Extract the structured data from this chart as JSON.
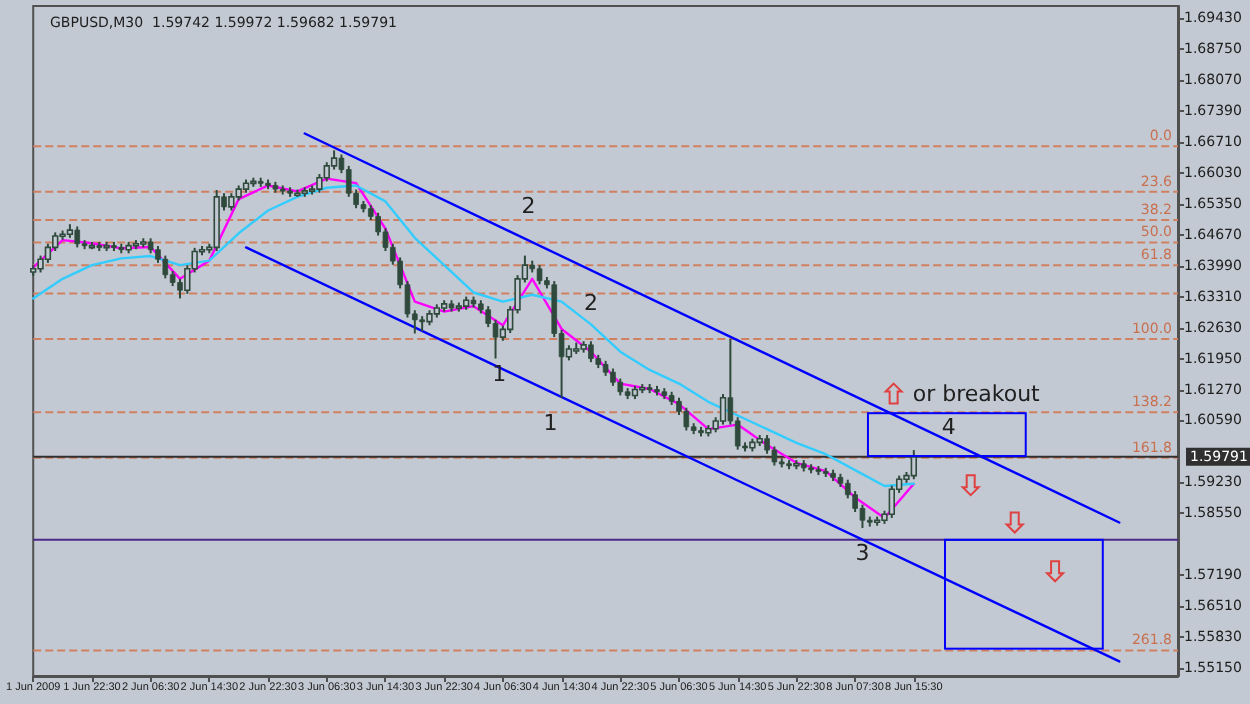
{
  "chart_data": {
    "type": "candlestick",
    "title": "GBPUSD,M30  1.59742 1.59972 1.59682 1.59791",
    "categories": [
      "1 Jun 2009",
      null,
      null,
      null,
      null,
      null,
      null,
      null,
      "1 Jun 22:30",
      null,
      null,
      null,
      null,
      null,
      null,
      null,
      "2 Jun 06:30",
      null,
      null,
      null,
      null,
      null,
      null,
      null,
      "2 Jun 14:30",
      null,
      null,
      null,
      null,
      null,
      null,
      null,
      "2 Jun 22:30",
      null,
      null,
      null,
      null,
      null,
      null,
      null,
      "3 Jun 06:30",
      null,
      null,
      null,
      null,
      null,
      null,
      null,
      "3 Jun 14:30",
      null,
      null,
      null,
      null,
      null,
      null,
      null,
      "3 Jun 22:30",
      null,
      null,
      null,
      null,
      null,
      null,
      null,
      "4 Jun 06:30",
      null,
      null,
      null,
      null,
      null,
      null,
      null,
      "4 Jun 14:30",
      null,
      null,
      null,
      null,
      null,
      null,
      null,
      "4 Jun 22:30",
      null,
      null,
      null,
      null,
      null,
      null,
      null,
      "5 Jun 06:30",
      null,
      null,
      null,
      null,
      null,
      null,
      null,
      "5 Jun 14:30",
      null,
      null,
      null,
      null,
      null,
      null,
      null,
      "5 Jun 22:30",
      null,
      null,
      null,
      null,
      null,
      null,
      null,
      "8 Jun 07:30",
      null,
      null,
      null,
      null,
      null,
      null,
      null,
      "8 Jun 15:30",
      null,
      null,
      null,
      null,
      null,
      null,
      null,
      null,
      null,
      null,
      null,
      null,
      null,
      null,
      null,
      null,
      null,
      null,
      null,
      null,
      null,
      null,
      null,
      null,
      null,
      null,
      null,
      null,
      null,
      null,
      null,
      null,
      null,
      null,
      null,
      null
    ],
    "ylim": [
      1.5498,
      1.6969
    ],
    "yticks": [
      {
        "value": 1.5515,
        "label": "1.55150"
      },
      {
        "value": 1.5583,
        "label": "1.55830"
      },
      {
        "value": 1.5651,
        "label": "1.56510"
      },
      {
        "value": 1.5719,
        "label": "1.57190"
      },
      {
        "value": 1.5855,
        "label": "1.58550"
      },
      {
        "value": 1.5923,
        "label": "1.59230"
      },
      {
        "value": 1.6059,
        "label": "1.60590"
      },
      {
        "value": 1.6127,
        "label": "1.61270"
      },
      {
        "value": 1.6195,
        "label": "1.61950"
      },
      {
        "value": 1.6263,
        "label": "1.62630"
      },
      {
        "value": 1.6331,
        "label": "1.63310"
      },
      {
        "value": 1.6399,
        "label": "1.63990"
      },
      {
        "value": 1.6467,
        "label": "1.64670"
      },
      {
        "value": 1.6535,
        "label": "1.65350"
      },
      {
        "value": 1.6603,
        "label": "1.66030"
      },
      {
        "value": 1.6671,
        "label": "1.66710"
      },
      {
        "value": 1.6739,
        "label": "1.67390"
      },
      {
        "value": 1.6807,
        "label": "1.68070"
      },
      {
        "value": 1.6875,
        "label": "1.68750"
      },
      {
        "value": 1.6943,
        "label": "1.69430"
      }
    ],
    "marker": "none",
    "series": [
      {
        "color": "#2f4a3c",
        "ohlc": [
          [
            1.6385,
            1.64,
            1.6377,
            1.6392
          ],
          [
            1.6392,
            1.6421,
            1.6384,
            1.6413
          ],
          [
            1.6413,
            1.6447,
            1.6405,
            1.6439
          ],
          [
            1.6439,
            1.6472,
            1.6431,
            1.6464
          ],
          [
            1.6464,
            1.6476,
            1.6456,
            1.6468
          ],
          [
            1.6468,
            1.649,
            1.646,
            1.6477
          ],
          [
            1.6477,
            1.6485,
            1.6439,
            1.6447
          ],
          [
            1.6447,
            1.6455,
            1.6435,
            1.6443
          ],
          [
            1.6443,
            1.6451,
            1.6435,
            1.6443
          ],
          [
            1.6443,
            1.6451,
            1.6431,
            1.6439
          ],
          [
            1.6439,
            1.6451,
            1.6431,
            1.6443
          ],
          [
            1.6443,
            1.6451,
            1.6431,
            1.6439
          ],
          [
            1.6439,
            1.6447,
            1.6426,
            1.6434
          ],
          [
            1.6434,
            1.6451,
            1.6426,
            1.6443
          ],
          [
            1.6443,
            1.6455,
            1.6435,
            1.6447
          ],
          [
            1.6447,
            1.6459,
            1.6439,
            1.6451
          ],
          [
            1.6451,
            1.6459,
            1.6426,
            1.6434
          ],
          [
            1.6434,
            1.6442,
            1.6405,
            1.6413
          ],
          [
            1.6413,
            1.6421,
            1.6371,
            1.6379
          ],
          [
            1.6379,
            1.6387,
            1.6354,
            1.6362
          ],
          [
            1.6362,
            1.637,
            1.6327,
            1.6345
          ],
          [
            1.6345,
            1.64,
            1.6337,
            1.6392
          ],
          [
            1.6392,
            1.6438,
            1.6384,
            1.643
          ],
          [
            1.643,
            1.6442,
            1.6422,
            1.6434
          ],
          [
            1.6434,
            1.6447,
            1.6426,
            1.6439
          ],
          [
            1.6439,
            1.6565,
            1.6431,
            1.655
          ],
          [
            1.655,
            1.6558,
            1.652,
            1.6528
          ],
          [
            1.6528,
            1.6558,
            1.652,
            1.655
          ],
          [
            1.655,
            1.6575,
            1.6542,
            1.6567
          ],
          [
            1.6567,
            1.6588,
            1.6559,
            1.658
          ],
          [
            1.658,
            1.6592,
            1.6572,
            1.6584
          ],
          [
            1.6584,
            1.6592,
            1.6572,
            1.658
          ],
          [
            1.658,
            1.6588,
            1.6567,
            1.6575
          ],
          [
            1.6575,
            1.6583,
            1.6559,
            1.6567
          ],
          [
            1.6567,
            1.6575,
            1.6555,
            1.6563
          ],
          [
            1.6563,
            1.6571,
            1.655,
            1.6558
          ],
          [
            1.6558,
            1.6566,
            1.655,
            1.6558
          ],
          [
            1.6558,
            1.6571,
            1.655,
            1.6563
          ],
          [
            1.6563,
            1.6575,
            1.6555,
            1.6567
          ],
          [
            1.6567,
            1.66,
            1.6559,
            1.6592
          ],
          [
            1.6592,
            1.6626,
            1.6584,
            1.6618
          ],
          [
            1.6618,
            1.6652,
            1.661,
            1.6635
          ],
          [
            1.6635,
            1.6643,
            1.6602,
            1.661
          ],
          [
            1.661,
            1.6618,
            1.655,
            1.6558
          ],
          [
            1.6558,
            1.6566,
            1.6525,
            1.6533
          ],
          [
            1.6533,
            1.6541,
            1.6516,
            1.6524
          ],
          [
            1.6524,
            1.6532,
            1.6499,
            1.6507
          ],
          [
            1.6507,
            1.6515,
            1.6465,
            1.6473
          ],
          [
            1.6473,
            1.6481,
            1.6431,
            1.6439
          ],
          [
            1.6439,
            1.6447,
            1.6401,
            1.6409
          ],
          [
            1.6409,
            1.6417,
            1.6349,
            1.6357
          ],
          [
            1.6357,
            1.6365,
            1.6285,
            1.6293
          ],
          [
            1.6293,
            1.6301,
            1.625,
            1.628
          ],
          [
            1.628,
            1.6288,
            1.6255,
            1.6276
          ],
          [
            1.6276,
            1.6301,
            1.6268,
            1.6293
          ],
          [
            1.6293,
            1.6314,
            1.6285,
            1.6306
          ],
          [
            1.6306,
            1.6323,
            1.6298,
            1.6315
          ],
          [
            1.6315,
            1.6323,
            1.6298,
            1.6306
          ],
          [
            1.6306,
            1.6318,
            1.6298,
            1.631
          ],
          [
            1.631,
            1.6331,
            1.6302,
            1.6323
          ],
          [
            1.6323,
            1.6331,
            1.6307,
            1.6315
          ],
          [
            1.6315,
            1.6323,
            1.6294,
            1.6302
          ],
          [
            1.6302,
            1.631,
            1.6264,
            1.6272
          ],
          [
            1.6272,
            1.628,
            1.6195,
            1.6242
          ],
          [
            1.6242,
            1.6267,
            1.6234,
            1.6259
          ],
          [
            1.6259,
            1.631,
            1.6251,
            1.6302
          ],
          [
            1.6302,
            1.6378,
            1.6294,
            1.637
          ],
          [
            1.637,
            1.6421,
            1.6362,
            1.64
          ],
          [
            1.64,
            1.641,
            1.6384,
            1.6392
          ],
          [
            1.6392,
            1.64,
            1.6358,
            1.6366
          ],
          [
            1.6366,
            1.6374,
            1.6349,
            1.6357
          ],
          [
            1.6357,
            1.6365,
            1.6242,
            1.625
          ],
          [
            1.625,
            1.6258,
            1.6109,
            1.6199
          ],
          [
            1.6199,
            1.6224,
            1.6191,
            1.6216
          ],
          [
            1.6216,
            1.623,
            1.6205,
            1.6216
          ],
          [
            1.6216,
            1.6233,
            1.6208,
            1.6225
          ],
          [
            1.6225,
            1.6233,
            1.6187,
            1.6195
          ],
          [
            1.6195,
            1.6203,
            1.6174,
            1.6182
          ],
          [
            1.6182,
            1.619,
            1.6157,
            1.6165
          ],
          [
            1.6165,
            1.6173,
            1.6135,
            1.6143
          ],
          [
            1.6143,
            1.6151,
            1.6114,
            1.6122
          ],
          [
            1.6122,
            1.613,
            1.6106,
            1.6114
          ],
          [
            1.6114,
            1.6135,
            1.6106,
            1.6127
          ],
          [
            1.6127,
            1.6139,
            1.6119,
            1.6131
          ],
          [
            1.6131,
            1.6139,
            1.6119,
            1.6127
          ],
          [
            1.6127,
            1.6135,
            1.6114,
            1.6122
          ],
          [
            1.6122,
            1.613,
            1.6106,
            1.6114
          ],
          [
            1.6114,
            1.6122,
            1.6093,
            1.6101
          ],
          [
            1.6101,
            1.6109,
            1.6071,
            1.6079
          ],
          [
            1.6079,
            1.6087,
            1.6037,
            1.6045
          ],
          [
            1.6045,
            1.6053,
            1.6029,
            1.6037
          ],
          [
            1.6037,
            1.6045,
            1.6024,
            1.6032
          ],
          [
            1.6032,
            1.6049,
            1.6024,
            1.6041
          ],
          [
            1.6041,
            1.6066,
            1.6033,
            1.6058
          ],
          [
            1.6058,
            1.6117,
            1.605,
            1.6109
          ],
          [
            1.6109,
            1.6238,
            1.605,
            1.6058
          ],
          [
            1.6058,
            1.6066,
            1.5995,
            1.6003
          ],
          [
            1.6003,
            1.6011,
            1.5991,
            1.5999
          ],
          [
            1.5999,
            1.6019,
            1.5991,
            1.6011
          ],
          [
            1.6011,
            1.6027,
            1.6003,
            1.6019
          ],
          [
            1.6019,
            1.6027,
            1.5986,
            1.5994
          ],
          [
            1.5994,
            1.6002,
            1.596,
            1.5968
          ],
          [
            1.5968,
            1.5976,
            1.5956,
            1.5964
          ],
          [
            1.5964,
            1.5972,
            1.5952,
            1.596
          ],
          [
            1.596,
            1.5972,
            1.5952,
            1.5964
          ],
          [
            1.5964,
            1.5972,
            1.5947,
            1.5955
          ],
          [
            1.5955,
            1.5963,
            1.5943,
            1.5951
          ],
          [
            1.5951,
            1.5959,
            1.5939,
            1.5947
          ],
          [
            1.5947,
            1.5955,
            1.5935,
            1.5943
          ],
          [
            1.5943,
            1.5951,
            1.5926,
            1.5934
          ],
          [
            1.5934,
            1.5942,
            1.5913,
            1.5921
          ],
          [
            1.5921,
            1.5929,
            1.5888,
            1.5896
          ],
          [
            1.5896,
            1.5904,
            1.5858,
            1.5866
          ],
          [
            1.5866,
            1.5874,
            1.5823,
            1.584
          ],
          [
            1.584,
            1.5848,
            1.5826,
            1.5836
          ],
          [
            1.5836,
            1.5848,
            1.5828,
            1.584
          ],
          [
            1.584,
            1.5861,
            1.5832,
            1.5853
          ],
          [
            1.5853,
            1.5916,
            1.5845,
            1.5908
          ],
          [
            1.5908,
            1.5938,
            1.59,
            1.593
          ],
          [
            1.593,
            1.5946,
            1.5922,
            1.5938
          ],
          [
            1.5938,
            1.5994,
            1.593,
            1.5979
          ],
          null,
          null,
          null,
          null,
          null,
          null,
          null,
          null,
          null,
          null,
          null,
          null,
          null,
          null,
          null,
          null,
          null,
          null,
          null,
          null,
          null,
          null,
          null,
          null,
          null,
          null,
          null,
          null,
          null,
          null,
          null,
          null,
          null,
          null,
          null,
          null
        ]
      },
      {
        "type": "line",
        "color": "#ff00ff",
        "values": [
          1.6395,
          null,
          null,
          null,
          1.6455,
          null,
          null,
          null,
          1.6448,
          null,
          null,
          null,
          1.6437,
          null,
          null,
          null,
          1.644,
          null,
          null,
          null,
          1.637,
          null,
          null,
          null,
          1.641,
          null,
          null,
          null,
          1.6545,
          null,
          null,
          null,
          1.6575,
          null,
          null,
          null,
          1.6562,
          null,
          null,
          null,
          1.659,
          null,
          null,
          null,
          1.658,
          null,
          null,
          null,
          1.648,
          null,
          null,
          null,
          1.632,
          null,
          null,
          null,
          1.6298,
          null,
          null,
          null,
          1.631,
          null,
          null,
          null,
          1.6268,
          null,
          null,
          null,
          1.637,
          null,
          null,
          null,
          1.626,
          null,
          null,
          null,
          1.621,
          null,
          null,
          null,
          1.614,
          null,
          null,
          null,
          1.6128,
          null,
          null,
          null,
          1.6095,
          null,
          null,
          null,
          1.604,
          null,
          null,
          null,
          1.605,
          null,
          null,
          null,
          1.6005,
          null,
          null,
          null,
          1.5966,
          null,
          null,
          null,
          1.5948,
          null,
          null,
          null,
          1.589,
          null,
          null,
          null,
          1.5845,
          null,
          null,
          null,
          1.592,
          null,
          null,
          null,
          null,
          null,
          null,
          null,
          null,
          null,
          null,
          null,
          null,
          null,
          null,
          null,
          null,
          null,
          null,
          null,
          null,
          null,
          null,
          null,
          null,
          null,
          null,
          null,
          null,
          null,
          null,
          null,
          null,
          null,
          null,
          null,
          null
        ]
      },
      {
        "type": "line",
        "color": "#33ccff",
        "values": [
          1.6327,
          null,
          null,
          null,
          1.637,
          null,
          null,
          null,
          1.64,
          null,
          null,
          null,
          1.6415,
          null,
          null,
          null,
          1.642,
          null,
          null,
          null,
          1.64,
          null,
          null,
          null,
          1.641,
          null,
          null,
          null,
          1.647,
          null,
          null,
          null,
          1.652,
          null,
          null,
          null,
          1.655,
          null,
          null,
          null,
          1.657,
          null,
          null,
          null,
          1.6575,
          null,
          null,
          null,
          1.654,
          null,
          null,
          null,
          1.646,
          null,
          null,
          null,
          1.64,
          null,
          null,
          null,
          1.634,
          null,
          null,
          null,
          1.632,
          null,
          null,
          null,
          1.6335,
          null,
          null,
          null,
          1.632,
          null,
          null,
          null,
          1.627,
          null,
          null,
          null,
          1.621,
          null,
          null,
          null,
          1.617,
          null,
          null,
          null,
          1.614,
          null,
          null,
          null,
          1.61,
          null,
          null,
          null,
          1.607,
          null,
          null,
          null,
          1.604,
          null,
          null,
          null,
          1.601,
          null,
          null,
          null,
          1.5985,
          null,
          null,
          null,
          1.595,
          null,
          null,
          null,
          1.5915,
          null,
          null,
          null,
          1.592,
          null,
          null,
          null,
          null,
          null,
          null,
          null,
          null,
          null,
          null,
          null,
          null,
          null,
          null,
          null,
          null,
          null,
          null,
          null,
          null,
          null,
          null,
          null,
          null,
          null,
          null,
          null,
          null,
          null,
          null,
          null,
          null,
          null,
          null,
          null,
          null
        ]
      },
      {
        "type": "line",
        "color": "#0000ff",
        "values": [
          null,
          null,
          null,
          null,
          null,
          null,
          null,
          null,
          null,
          null,
          null,
          null,
          null,
          null,
          null,
          null,
          null,
          null,
          null,
          null,
          null,
          null,
          null,
          null,
          null,
          null,
          null,
          null,
          null,
          null,
          null,
          null,
          null,
          null,
          null,
          null,
          null,
          1.6689,
          null,
          null,
          null,
          null,
          null,
          null,
          null,
          null,
          null,
          null,
          null,
          null,
          null,
          null,
          null,
          null,
          null,
          null,
          null,
          null,
          null,
          null,
          null,
          null,
          null,
          null,
          null,
          null,
          null,
          null,
          null,
          null,
          null,
          null,
          null,
          null,
          null,
          null,
          null,
          null,
          null,
          null,
          null,
          null,
          null,
          null,
          null,
          null,
          null,
          null,
          null,
          null,
          null,
          null,
          null,
          null,
          null,
          null,
          null,
          null,
          null,
          null,
          null,
          null,
          null,
          null,
          null,
          null,
          null,
          null,
          null,
          null,
          null,
          null,
          null,
          null,
          null,
          null,
          null,
          null,
          null,
          null,
          null,
          null,
          null,
          null,
          null,
          null,
          null,
          null,
          null,
          null,
          null,
          null,
          null,
          null,
          null,
          null,
          null,
          null,
          null,
          null,
          null,
          null,
          null,
          null,
          null,
          null,
          null,
          null,
          1.5835,
          null,
          null,
          null,
          null,
          null,
          null,
          null,
          null
        ]
      },
      {
        "type": "line",
        "color": "#0000ff",
        "values": [
          null,
          null,
          null,
          null,
          null,
          null,
          null,
          null,
          null,
          null,
          null,
          null,
          null,
          null,
          null,
          null,
          null,
          null,
          null,
          null,
          null,
          null,
          null,
          null,
          null,
          null,
          null,
          null,
          null,
          1.6439,
          null,
          null,
          null,
          null,
          null,
          null,
          null,
          null,
          null,
          null,
          null,
          null,
          null,
          null,
          null,
          null,
          null,
          null,
          null,
          null,
          null,
          null,
          null,
          null,
          null,
          null,
          null,
          null,
          null,
          null,
          null,
          null,
          null,
          null,
          null,
          null,
          null,
          null,
          null,
          null,
          null,
          null,
          null,
          null,
          null,
          null,
          null,
          null,
          null,
          null,
          null,
          null,
          null,
          null,
          null,
          null,
          null,
          null,
          null,
          null,
          null,
          null,
          null,
          null,
          null,
          null,
          null,
          null,
          null,
          null,
          null,
          null,
          null,
          null,
          null,
          null,
          null,
          null,
          null,
          null,
          null,
          null,
          null,
          null,
          null,
          null,
          null,
          null,
          null,
          null,
          null,
          null,
          null,
          null,
          null,
          null,
          null,
          null,
          null,
          null,
          null,
          null,
          null,
          null,
          null,
          null,
          null,
          null,
          null,
          null,
          null,
          null,
          null,
          null,
          null,
          null,
          null,
          null,
          1.553,
          null,
          null,
          null,
          null,
          null,
          null,
          null,
          null
        ]
      }
    ],
    "ref_lines": [
      {
        "axis": "y",
        "value": 1.6661,
        "label": null,
        "color": "#d08060",
        "line_style": "dashed"
      },
      {
        "axis": "y",
        "value": 1.6561,
        "label": null,
        "color": "#d08060",
        "line_style": "dashed"
      },
      {
        "axis": "y",
        "value": 1.6499,
        "label": null,
        "color": "#d08060",
        "line_style": "dashed"
      },
      {
        "axis": "y",
        "value": 1.645,
        "label": null,
        "color": "#d08060",
        "line_style": "dashed"
      },
      {
        "axis": "y",
        "value": 1.64,
        "label": null,
        "color": "#d08060",
        "line_style": "dashed"
      },
      {
        "axis": "y",
        "value": 1.6338,
        "label": null,
        "color": "#d08060",
        "line_style": "dashed"
      },
      {
        "axis": "y",
        "value": 1.6238,
        "label": null,
        "color": "#d08060",
        "line_style": "dashed"
      },
      {
        "axis": "y",
        "value": 1.6077,
        "label": null,
        "color": "#d08060",
        "line_style": "dashed"
      },
      {
        "axis": "y",
        "value": 1.5977,
        "label": null,
        "color": "#d08060",
        "line_style": "dashed"
      },
      {
        "axis": "y",
        "value": 1.5554,
        "label": null,
        "color": "#d08060",
        "line_style": "dashed"
      },
      {
        "axis": "y",
        "value": 1.59791,
        "label": "1.59791",
        "color": "#303030",
        "line_style": "solid"
      },
      {
        "axis": "y",
        "value": 1.5797,
        "label": null,
        "color": "#4b2a8c",
        "line_style": "solid"
      }
    ],
    "annotations": [
      {
        "text": "0.0",
        "y": 1.6661
      },
      {
        "text": "23.6",
        "y": 1.6561
      },
      {
        "text": "38.2",
        "y": 1.6499
      },
      {
        "text": "50.0",
        "y": 1.645
      },
      {
        "text": "61.8",
        "y": 1.64
      },
      {
        "text": "100.0",
        "y": 1.6238
      },
      {
        "text": "138.2",
        "y": 1.6077
      },
      {
        "text": "161.8",
        "y": 1.5977
      },
      {
        "text": "261.8",
        "y": 1.5554
      },
      "2",
      "2",
      "1",
      "1",
      "3",
      "4",
      "or breakout"
    ]
  }
}
